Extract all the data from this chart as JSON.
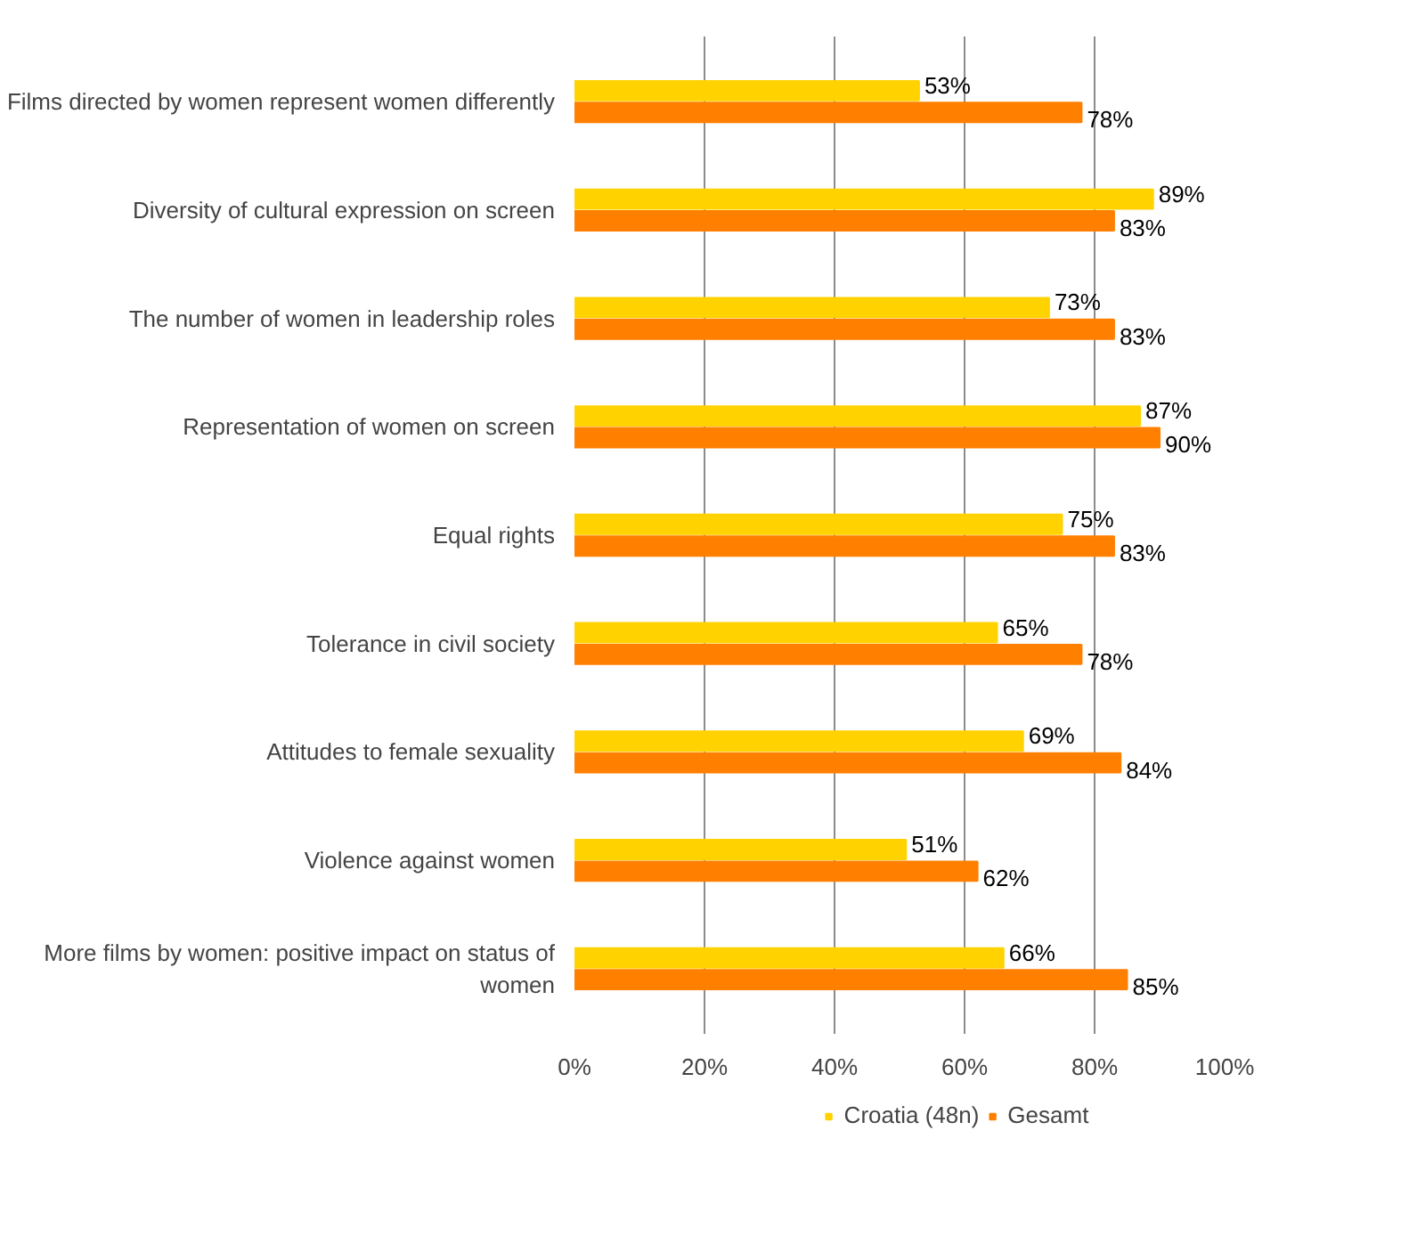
{
  "chart_data": {
    "type": "bar",
    "orientation": "horizontal",
    "categories": [
      "Films directed by women represent women differently",
      "Diversity of cultural expression on screen",
      "The number of women in leadership roles",
      "Representation of women on screen",
      "Equal rights",
      "Tolerance in civil society",
      "Attitudes to female sexuality",
      "Violence against women",
      "More films by women: positive impact on status of women"
    ],
    "series": [
      {
        "name": "Croatia (48n)",
        "color": "#ffd200",
        "values": [
          53,
          89,
          73,
          87,
          75,
          65,
          69,
          51,
          66
        ],
        "value_labels": [
          "53%",
          "89%",
          "73%",
          "87%",
          "75%",
          "65%",
          "69%",
          "51%",
          "66%"
        ]
      },
      {
        "name": "Gesamt",
        "color": "#ff8000",
        "values": [
          78,
          83,
          83,
          90,
          83,
          78,
          84,
          62,
          85
        ],
        "value_labels": [
          "78%",
          "83%",
          "83%",
          "90%",
          "83%",
          "78%",
          "84%",
          "62%",
          "85%"
        ]
      }
    ],
    "xlim": [
      0,
      100
    ],
    "xticks": [
      {
        "value": 0,
        "label": "0%"
      },
      {
        "value": 20,
        "label": "20%"
      },
      {
        "value": 40,
        "label": "40%"
      },
      {
        "value": 60,
        "label": "60%"
      },
      {
        "value": 80,
        "label": "80%"
      },
      {
        "value": 100,
        "label": "100%"
      }
    ],
    "grid": "x",
    "legend": "bottom"
  }
}
